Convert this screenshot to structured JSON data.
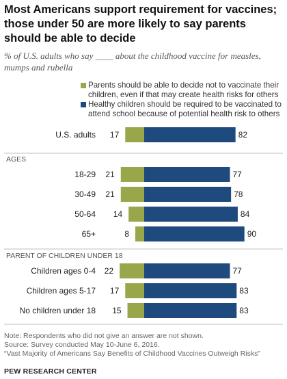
{
  "title": "Most Americans support requirement for vaccines; those under 50 are more likely to say parents should be able to decide",
  "subtitle": "% of U.S. adults who say ____ about the childhood vaccine for measles, mumps and rubella",
  "colors": {
    "parents_decide": "#9aa64a",
    "required": "#1f4a7d",
    "divider": "#bfbfbf"
  },
  "legend": [
    {
      "label": "Parents should be able to decide not to vaccinate their children, even if that may create health risks for others",
      "color": "#9aa64a"
    },
    {
      "label": "Healthy children should be required to be vaccinated to attend school because of potential health risk to others",
      "color": "#1f4a7d"
    }
  ],
  "chart_data": {
    "type": "bar",
    "orientation": "horizontal-diverging",
    "series": [
      {
        "name": "Parents should be able to decide not to vaccinate their children, even if that may create health risks for others",
        "values": [
          17,
          21,
          21,
          14,
          8,
          22,
          17,
          15
        ]
      },
      {
        "name": "Healthy children should be required to be vaccinated to attend school because of potential health risk to others",
        "values": [
          82,
          77,
          78,
          84,
          90,
          77,
          83,
          83
        ]
      }
    ],
    "categories": [
      "U.S. adults",
      "18-29",
      "30-49",
      "50-64",
      "65+",
      "Children ages 0-4",
      "Children ages 5-17",
      "No children under 18"
    ],
    "groups": [
      {
        "label": "",
        "indices": [
          0
        ]
      },
      {
        "label": "AGES",
        "indices": [
          1,
          2,
          3,
          4
        ]
      },
      {
        "label": "PARENT OF CHILDREN UNDER 18",
        "indices": [
          5,
          6,
          7
        ]
      }
    ],
    "xlim": [
      0,
      100
    ],
    "grid": false
  },
  "notes": {
    "note": "Note: Respondents who did not give an answer are not shown.",
    "source": "Source: Survey conducted May 10-June 6, 2016.",
    "report": "“Vast Majority of Americans Say Benefits of Childhood Vaccines Outweigh Risks”",
    "org": "PEW RESEARCH CENTER"
  }
}
